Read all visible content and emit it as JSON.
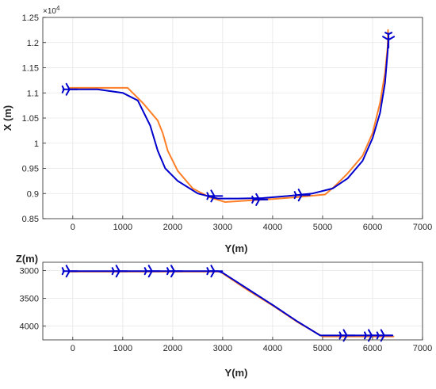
{
  "chart_data": [
    {
      "type": "line",
      "xlabel": "Y(m)",
      "ylabel": "X (m)",
      "y_exponent_label": "×10",
      "y_exponent_power": "4",
      "xlim": [
        -600,
        7000
      ],
      "ylim": [
        1.25,
        0.85
      ],
      "y_reversed": true,
      "grid": true,
      "xticks": [
        "0",
        "1000",
        "2000",
        "3000",
        "4000",
        "5000",
        "6000",
        "7000"
      ],
      "xtick_values": [
        0,
        1000,
        2000,
        3000,
        4000,
        5000,
        6000,
        7000
      ],
      "yticks": [
        "0.85",
        "0.9",
        "0.95",
        "1",
        "1.05",
        "1.1",
        "1.15",
        "1.2",
        "1.25"
      ],
      "ytick_values": [
        0.85,
        0.9,
        0.95,
        1,
        1.05,
        1.1,
        1.15,
        1.2,
        1.25
      ],
      "series": [
        {
          "color": "#0000cc",
          "x": [
            -50,
            500,
            1000,
            1300,
            1550,
            1700,
            1850,
            2100,
            2500,
            2900,
            3300,
            3800,
            4300,
            4800,
            5200,
            5500,
            5800,
            6000,
            6150,
            6250,
            6300,
            6320
          ],
          "y": [
            1.107,
            1.107,
            1.1,
            1.085,
            1.035,
            0.985,
            0.95,
            0.925,
            0.9,
            0.89,
            0.89,
            0.891,
            0.895,
            0.9,
            0.91,
            0.93,
            0.965,
            1.01,
            1.06,
            1.12,
            1.18,
            1.21
          ]
        },
        {
          "color": "#ff7f27",
          "x": [
            -50,
            500,
            1100,
            1400,
            1700,
            1800,
            1900,
            2100,
            2400,
            2750,
            3050,
            3500,
            4000,
            4500,
            5050,
            5250,
            5500,
            5800,
            6000,
            6150,
            6250,
            6300,
            6310
          ],
          "y": [
            1.11,
            1.11,
            1.11,
            1.08,
            1.045,
            1.02,
            0.985,
            0.945,
            0.91,
            0.892,
            0.883,
            0.886,
            0.889,
            0.893,
            0.898,
            0.915,
            0.94,
            0.975,
            1.02,
            1.08,
            1.14,
            1.19,
            1.225
          ]
        }
      ],
      "markers": [
        {
          "x": -50,
          "y": 1.107,
          "direction": "east"
        },
        {
          "x": 2850,
          "y": 0.895,
          "direction": "east"
        },
        {
          "x": 3750,
          "y": 0.888,
          "direction": "east"
        },
        {
          "x": 4600,
          "y": 0.897,
          "direction": "east"
        },
        {
          "x": 6320,
          "y": 1.204,
          "direction": "south"
        }
      ]
    },
    {
      "type": "line",
      "xlabel": "Y(m)",
      "ylabel": "Z(m)",
      "xlim": [
        -600,
        7000
      ],
      "ylim": [
        2850,
        4250
      ],
      "grid": true,
      "xticks": [
        "0",
        "1000",
        "2000",
        "3000",
        "4000",
        "5000",
        "6000",
        "7000"
      ],
      "xtick_values": [
        0,
        1000,
        2000,
        3000,
        4000,
        5000,
        6000,
        7000
      ],
      "yticks": [
        "3000",
        "3500",
        "4000"
      ],
      "ytick_values": [
        3000,
        3500,
        4000
      ],
      "series": [
        {
          "color": "#0000cc",
          "x": [
            -50,
            1000,
            2000,
            2900,
            3000,
            3500,
            4000,
            4500,
            4950,
            5050,
            6000,
            6400
          ],
          "y": [
            3010,
            3010,
            3010,
            3010,
            3040,
            3330,
            3620,
            3920,
            4170,
            4170,
            4170,
            4170
          ]
        },
        {
          "color": "#ff7f27",
          "x": [
            -50,
            1000,
            2000,
            2950,
            3000,
            3500,
            4000,
            4500,
            5000,
            6000,
            6420
          ],
          "y": [
            3020,
            3020,
            3020,
            3020,
            3050,
            3350,
            3630,
            3930,
            4190,
            4190,
            4190
          ]
        }
      ],
      "markers": [
        {
          "x": -50,
          "y": 3010
        },
        {
          "x": 950,
          "y": 3010
        },
        {
          "x": 1600,
          "y": 3010
        },
        {
          "x": 2050,
          "y": 3010
        },
        {
          "x": 2850,
          "y": 3010
        },
        {
          "x": 5500,
          "y": 4170
        },
        {
          "x": 6000,
          "y": 4170
        },
        {
          "x": 6250,
          "y": 4170
        }
      ]
    }
  ]
}
